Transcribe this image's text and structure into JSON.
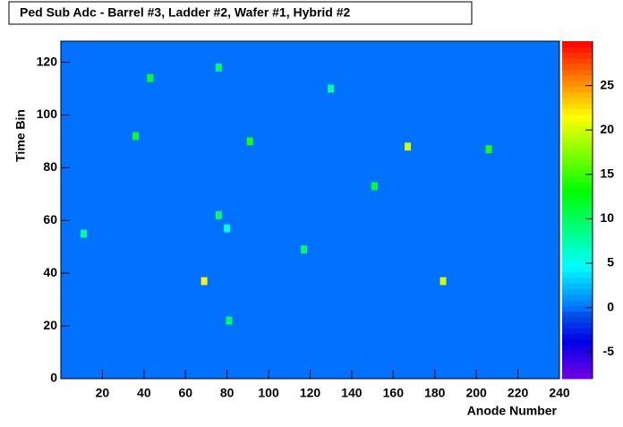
{
  "chart_data": {
    "type": "heatmap",
    "title": "Ped Sub Adc - Barrel #3, Ladder #2, Wafer #1, Hybrid #2",
    "x_label": "Anode Number",
    "y_label": "Time Bin",
    "xlim": [
      0,
      240
    ],
    "ylim": [
      0,
      128
    ],
    "zlim": [
      -8,
      30
    ],
    "xticks": [
      20,
      40,
      60,
      80,
      100,
      120,
      140,
      160,
      180,
      200,
      220,
      240
    ],
    "yticks": [
      0,
      20,
      40,
      60,
      80,
      100,
      120
    ],
    "zticks": [
      -5,
      0,
      5,
      10,
      15,
      20,
      25
    ],
    "background_value": 0,
    "cells": {
      "x": [
        43,
        76,
        36,
        91,
        130,
        167,
        206,
        151,
        76,
        80,
        11,
        117,
        69,
        184,
        81
      ],
      "y": [
        114,
        118,
        92,
        90,
        110,
        88,
        87,
        73,
        62,
        57,
        55,
        49,
        37,
        37,
        22
      ],
      "values": [
        12,
        10,
        12,
        14,
        8,
        20,
        14,
        12,
        10,
        6,
        8,
        10,
        22,
        20,
        10
      ]
    }
  }
}
